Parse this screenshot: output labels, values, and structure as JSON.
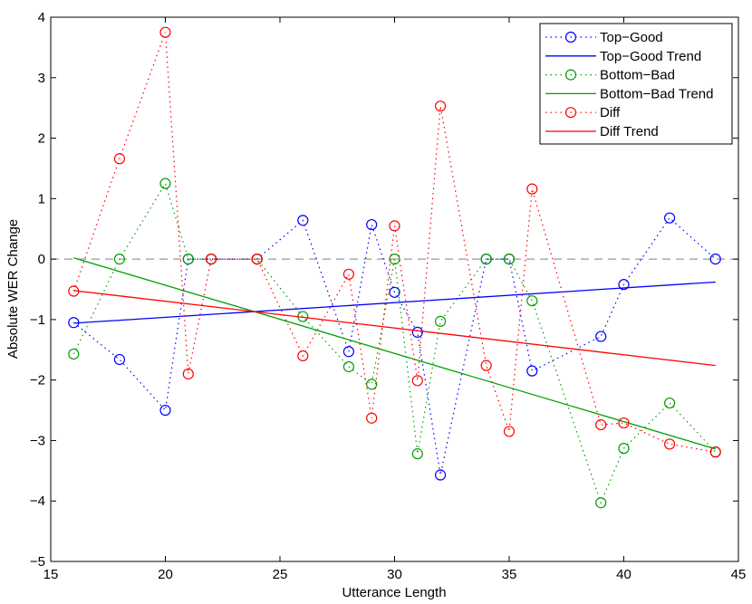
{
  "chart_data": {
    "type": "line",
    "title": "",
    "xlabel": "Utterance Length",
    "ylabel": "Absolute WER Change",
    "xlim": [
      15,
      45
    ],
    "ylim": [
      -5,
      4
    ],
    "xticks": [
      15,
      20,
      25,
      30,
      35,
      40,
      45
    ],
    "yticks": [
      -5,
      -4,
      -3,
      -2,
      -1,
      0,
      1,
      2,
      3,
      4
    ],
    "zero_line": {
      "y": 0,
      "color": "#999999",
      "style": "dashed"
    },
    "legend_position": "top-right",
    "series": [
      {
        "name": "Top−Good",
        "color": "#0000ff",
        "style": "dotted-marker",
        "x": [
          16,
          18,
          20,
          21,
          22,
          24,
          26,
          28,
          29,
          30,
          31,
          32,
          34,
          35,
          36,
          39,
          40,
          42,
          44
        ],
        "y": [
          -1.05,
          -1.66,
          -2.5,
          0,
          0,
          0,
          0.64,
          -1.53,
          0.57,
          -0.55,
          -1.21,
          -3.57,
          0,
          0,
          -1.85,
          -1.28,
          -0.42,
          0.68,
          0
        ]
      },
      {
        "name": "Top−Good Trend",
        "color": "#0000ff",
        "style": "solid",
        "x": [
          16,
          44
        ],
        "y": [
          -1.06,
          -0.38
        ]
      },
      {
        "name": "Bottom−Bad",
        "color": "#00a000",
        "style": "dotted-marker",
        "x": [
          16,
          18,
          20,
          21,
          22,
          24,
          26,
          28,
          29,
          30,
          31,
          32,
          34,
          35,
          36,
          39,
          40,
          42,
          44
        ],
        "y": [
          -1.57,
          0,
          1.25,
          0,
          0,
          0,
          -0.95,
          -1.78,
          -2.07,
          0,
          -3.22,
          -1.03,
          0,
          0,
          -0.69,
          -4.03,
          -3.13,
          -2.38,
          -3.19
        ]
      },
      {
        "name": "Bottom−Bad Trend",
        "color": "#00a000",
        "style": "solid",
        "x": [
          16,
          44
        ],
        "y": [
          0.02,
          -3.14
        ]
      },
      {
        "name": "Diff",
        "color": "#ff0000",
        "style": "dotted-marker",
        "x": [
          16,
          18,
          20,
          21,
          22,
          24,
          26,
          28,
          29,
          30,
          31,
          32,
          34,
          35,
          36,
          39,
          40,
          42,
          44
        ],
        "y": [
          -0.53,
          1.66,
          3.75,
          -1.9,
          0,
          0,
          -1.6,
          -0.25,
          -2.63,
          0.55,
          -2.01,
          2.53,
          -1.76,
          -2.85,
          1.16,
          -2.74,
          -2.71,
          -3.06,
          -3.19
        ]
      },
      {
        "name": "Diff Trend",
        "color": "#ff0000",
        "style": "solid",
        "x": [
          16,
          44
        ],
        "y": [
          -0.52,
          -1.76
        ]
      }
    ]
  }
}
